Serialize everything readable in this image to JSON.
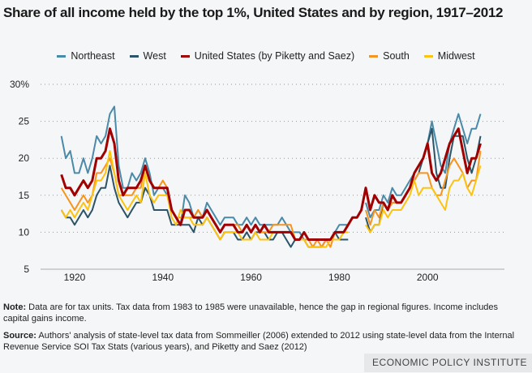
{
  "chart_data": {
    "type": "line",
    "title": "Share of all income held by the top 1%, United States and by region, 1917–2012",
    "xlabel": "",
    "ylabel": "",
    "xlim": [
      1912,
      2018
    ],
    "ylim": [
      5,
      30
    ],
    "x_ticks": [
      "1920",
      "1940",
      "1960",
      "1980",
      "2000"
    ],
    "x_tick_values": [
      1920,
      1940,
      1960,
      1980,
      2000
    ],
    "y_ticks": [
      "30%",
      "25",
      "20",
      "15",
      "10",
      "5"
    ],
    "y_tick_values": [
      30,
      25,
      20,
      15,
      10,
      5
    ],
    "grid": "horizontal dotted",
    "legend_position": "top",
    "series": [
      {
        "name": "Northeast",
        "color": "#4a8aa8",
        "segments": [
          {
            "start": 1917,
            "values": [
              23,
              20,
              21,
              18,
              18,
              20,
              18,
              20,
              23,
              22,
              23,
              26,
              27,
              19,
              16,
              16,
              18,
              17,
              18,
              20,
              18,
              15,
              16,
              16,
              15,
              13,
              12,
              11,
              15,
              14,
              12,
              13,
              12,
              14,
              13,
              12,
              11,
              12,
              12,
              12,
              11,
              11,
              12,
              11,
              12,
              11,
              11,
              11,
              11,
              11,
              12,
              11,
              10,
              10,
              10,
              9,
              9,
              9,
              9,
              9,
              9,
              9,
              10,
              11,
              11,
              11
            ]
          },
          {
            "start": 1986,
            "values": [
              14,
              12,
              13,
              13,
              15,
              14,
              16,
              15,
              15,
              16,
              17,
              18,
              19,
              20,
              22,
              25,
              22,
              19,
              18,
              22,
              24,
              26,
              24,
              22,
              24,
              24,
              26
            ]
          }
        ]
      },
      {
        "name": "West",
        "color": "#2c5468",
        "segments": [
          {
            "start": 1917,
            "values": [
              13,
              12,
              12,
              11,
              12,
              13,
              12,
              13,
              15,
              16,
              16,
              19,
              16,
              14,
              13,
              12,
              13,
              14,
              14,
              16,
              15,
              13,
              13,
              13,
              13,
              11,
              11,
              11,
              11,
              11,
              10,
              12,
              11,
              12,
              11,
              10,
              9,
              10,
              10,
              10,
              9,
              9,
              10,
              9,
              10,
              10,
              10,
              9,
              9,
              10,
              10,
              9,
              8,
              9,
              9,
              9,
              8,
              8,
              8,
              8,
              9,
              9,
              10,
              9,
              9,
              9
            ]
          },
          {
            "start": 1986,
            "values": [
              12,
              10,
              11,
              11,
              14,
              13,
              14,
              14,
              14,
              15,
              16,
              17,
              18,
              20,
              22,
              24,
              18,
              16,
              16,
              20,
              23,
              23,
              23,
              20,
              18,
              20,
              23
            ]
          }
        ]
      },
      {
        "name": "South",
        "color": "#f7941d",
        "segments": [
          {
            "start": 1917,
            "values": [
              16,
              15,
              14,
              13,
              14,
              15,
              14,
              15,
              18,
              18,
              19,
              20,
              18,
              15,
              15,
              15,
              15,
              16,
              16,
              19,
              17,
              16,
              16,
              17,
              16,
              13,
              12,
              12,
              12,
              12,
              12,
              13,
              12,
              13,
              12,
              11,
              10,
              11,
              11,
              11,
              11,
              10,
              11,
              10,
              11,
              10,
              10,
              10,
              11,
              11,
              11,
              11,
              11,
              9,
              9,
              9,
              9,
              8,
              9,
              8,
              9,
              8,
              10,
              10,
              10,
              11
            ]
          },
          {
            "start": 1986,
            "values": [
              13,
              11,
              13,
              12,
              14,
              13,
              14,
              14,
              14,
              15,
              16,
              17,
              18,
              18,
              18,
              16,
              15,
              15,
              17,
              19,
              20,
              19,
              18,
              16,
              17,
              17,
              21
            ]
          }
        ]
      },
      {
        "name": "Midwest",
        "color": "#fcc30f",
        "segments": [
          {
            "start": 1917,
            "values": [
              13,
              12,
              13,
              12,
              13,
              14,
              13,
              15,
              17,
              17,
              18,
              21,
              18,
              15,
              14,
              13,
              14,
              15,
              14,
              18,
              15,
              14,
              15,
              15,
              15,
              12,
              11,
              13,
              12,
              12,
              11,
              11,
              11,
              12,
              11,
              10,
              9,
              10,
              10,
              10,
              10,
              9,
              9,
              9,
              10,
              9,
              9,
              9,
              10,
              10,
              10,
              10,
              10,
              9,
              9,
              9,
              8,
              8,
              8,
              8,
              8,
              9,
              9,
              9,
              10,
              10
            ]
          },
          {
            "start": 1986,
            "values": [
              11,
              10,
              11,
              11,
              13,
              12,
              13,
              13,
              13,
              14,
              15,
              17,
              15,
              16,
              16,
              16,
              15,
              14,
              13,
              16,
              17,
              17,
              18,
              16,
              15,
              17,
              19
            ]
          }
        ]
      },
      {
        "name": "United States (by Piketty and Saez)",
        "color": "#a00000",
        "segments": [
          {
            "start": 1917,
            "values": [
              17.8,
              16,
              16,
              15,
              16,
              17,
              16,
              17,
              20,
              20,
              21,
              24,
              22,
              17,
              15,
              16,
              16,
              16,
              17,
              19,
              17,
              16,
              16,
              16,
              16,
              13,
              12,
              11,
              13,
              13,
              12,
              12,
              12,
              13,
              12,
              11,
              10,
              11,
              11,
              11,
              10,
              10,
              11,
              10,
              11,
              10,
              11,
              10,
              10,
              10,
              10,
              10,
              10,
              9,
              9,
              10,
              9,
              9,
              9,
              9,
              9,
              9,
              10,
              10,
              10,
              11,
              12,
              12,
              13,
              16,
              13,
              15,
              14,
              14,
              13,
              15,
              14,
              14,
              15,
              16,
              18,
              19,
              20,
              22,
              18,
              17,
              18,
              20,
              22,
              23,
              24,
              21,
              18,
              20,
              20,
              22
            ]
          }
        ]
      }
    ]
  },
  "legend": {
    "items": [
      {
        "label": "Northeast",
        "color": "#4a8aa8"
      },
      {
        "label": "West",
        "color": "#2c5468"
      },
      {
        "label": "United States (by Piketty and Saez)",
        "color": "#a00000"
      },
      {
        "label": "South",
        "color": "#f7941d"
      },
      {
        "label": "Midwest",
        "color": "#fcc30f"
      }
    ]
  },
  "notes": {
    "note_label": "Note:",
    "note_text": " Data are for tax units. Tax data from 1983 to 1985 were unavailable, hence the gap in regional figures. Income includes capital gains income.",
    "source_label": "Source:",
    "source_text": " Authors' analysis of state-level tax data from Sommeiller (2006) extended to 2012 using state-level data from the Internal Revenue Service SOI Tax Stats (various years), and Piketty and Saez (2012)"
  },
  "brand": "ECONOMIC POLICY INSTITUTE"
}
